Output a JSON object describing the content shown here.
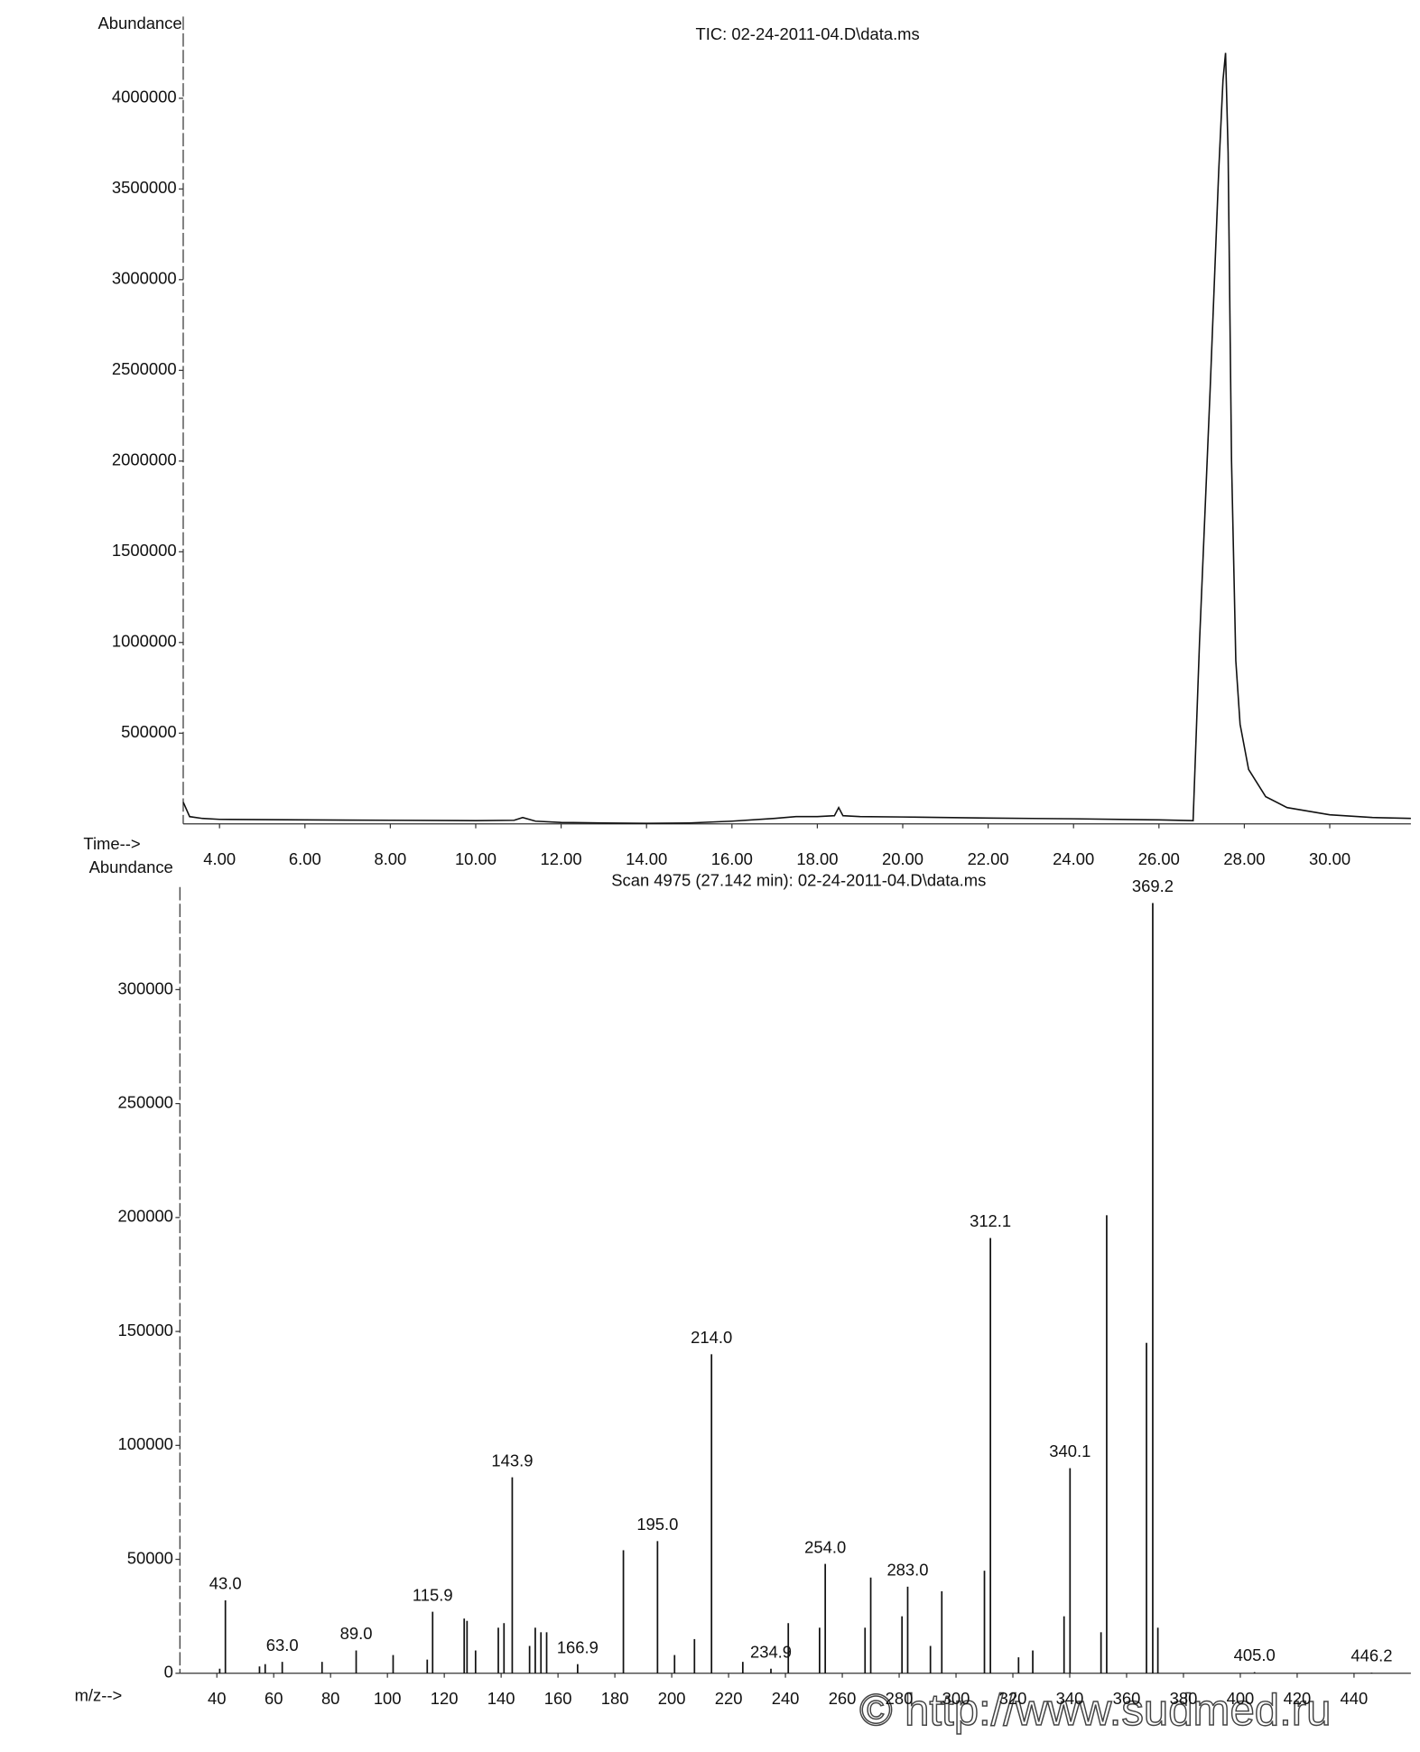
{
  "chart_data": [
    {
      "type": "line",
      "title": "TIC: 02-24-2011-04.D\\data.ms",
      "y_label": "Abundance",
      "x_label": "Time-->",
      "color": "#111111",
      "x": [
        3.15,
        3.3,
        3.6,
        4,
        6,
        8,
        10,
        10.9,
        11.1,
        11.4,
        12,
        13,
        14,
        15,
        16,
        17,
        17.5,
        18,
        18.4,
        18.5,
        18.6,
        19,
        20,
        22,
        24,
        26,
        26.8,
        26.95,
        27.2,
        27.4,
        27.5,
        27.56,
        27.62,
        27.7,
        27.8,
        27.9,
        28.1,
        28.5,
        29,
        30,
        31,
        31.9
      ],
      "values": [
        120000,
        40000,
        30000,
        25000,
        22000,
        20000,
        18000,
        20000,
        35000,
        15000,
        8000,
        5000,
        3000,
        5000,
        15000,
        30000,
        40000,
        40000,
        45000,
        90000,
        45000,
        40000,
        38000,
        32000,
        28000,
        22000,
        18000,
        1000000,
        2400000,
        3600000,
        4100000,
        4250000,
        3700000,
        2000000,
        900000,
        550000,
        300000,
        150000,
        90000,
        50000,
        35000,
        30000
      ],
      "xlim": [
        3.15,
        31.9
      ],
      "ylim": [
        0,
        4450000
      ],
      "xticks": [
        {
          "value": 4,
          "label": "4.00"
        },
        {
          "value": 6,
          "label": "6.00"
        },
        {
          "value": 8,
          "label": "8.00"
        },
        {
          "value": 10,
          "label": "10.00"
        },
        {
          "value": 12,
          "label": "12.00"
        },
        {
          "value": 14,
          "label": "14.00"
        },
        {
          "value": 16,
          "label": "16.00"
        },
        {
          "value": 18,
          "label": "18.00"
        },
        {
          "value": 20,
          "label": "20.00"
        },
        {
          "value": 22,
          "label": "22.00"
        },
        {
          "value": 24,
          "label": "24.00"
        },
        {
          "value": 26,
          "label": "26.00"
        },
        {
          "value": 28,
          "label": "28.00"
        },
        {
          "value": 30,
          "label": "30.00"
        }
      ],
      "yticks": [
        500000,
        1000000,
        1500000,
        2000000,
        2500000,
        3000000,
        3500000,
        4000000
      ]
    },
    {
      "type": "stem",
      "title": "Scan 4975 (27.142 min): 02-24-2011-04.D\\data.ms",
      "y_label": "Abundance",
      "x_label": "m/z-->",
      "color": "#111111",
      "x": [
        41,
        43,
        55,
        57,
        63,
        77,
        89,
        102,
        114,
        115.9,
        127,
        128,
        131,
        139,
        141,
        143.9,
        150,
        152,
        154,
        156,
        166.9,
        183,
        195,
        201,
        208,
        214,
        225,
        234.9,
        241,
        252,
        254,
        268,
        270,
        281,
        283,
        291,
        295,
        310,
        312.1,
        322,
        327,
        338,
        340.1,
        351,
        353,
        367,
        369.2,
        371,
        405,
        446.2
      ],
      "values": [
        2000,
        32000,
        3000,
        4000,
        5000,
        5000,
        10000,
        8000,
        6000,
        27000,
        24000,
        23000,
        10000,
        20000,
        22000,
        86000,
        12000,
        20000,
        18000,
        18000,
        4000,
        54000,
        58000,
        8000,
        15000,
        140000,
        5000,
        2000,
        22000,
        20000,
        48000,
        20000,
        42000,
        25000,
        38000,
        12000,
        36000,
        45000,
        191000,
        7000,
        10000,
        25000,
        90000,
        18000,
        201000,
        145000,
        338000,
        20000,
        500,
        300
      ],
      "x_labels": [
        null,
        "43.0",
        null,
        null,
        "63.0",
        null,
        "89.0",
        null,
        null,
        "115.9",
        null,
        null,
        null,
        null,
        null,
        "143.9",
        null,
        null,
        null,
        null,
        "166.9",
        null,
        "195.0",
        null,
        null,
        "214.0",
        null,
        "234.9",
        null,
        null,
        "254.0",
        null,
        null,
        null,
        "283.0",
        null,
        null,
        null,
        "312.1",
        null,
        null,
        null,
        "340.1",
        null,
        null,
        null,
        "369.2",
        null,
        "405.0",
        "446.2"
      ],
      "xlim": [
        27,
        460
      ],
      "ylim": [
        0,
        345000
      ],
      "xticks": [
        40,
        60,
        80,
        100,
        120,
        140,
        160,
        180,
        200,
        220,
        240,
        260,
        280,
        300,
        320,
        340,
        360,
        380,
        400,
        420,
        440
      ],
      "yticks": [
        0,
        50000,
        100000,
        150000,
        200000,
        250000,
        300000
      ]
    }
  ],
  "watermark": "© http://www.sudmed.ru"
}
